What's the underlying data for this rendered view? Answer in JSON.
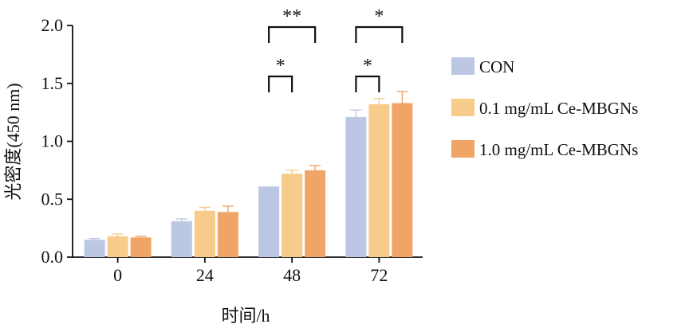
{
  "chart_data": {
    "type": "bar",
    "categories": [
      "0",
      "24",
      "48",
      "72"
    ],
    "xlabel": "时间/h",
    "ylabel": "光密度(450 nm)",
    "ylim": [
      0,
      2.0
    ],
    "yticks": [
      "0.0",
      "0.5",
      "1.0",
      "1.5",
      "2.0"
    ],
    "series": [
      {
        "name": "CON",
        "color": "#BCC8E3",
        "values": [
          0.15,
          0.31,
          0.61,
          1.21
        ],
        "errors": [
          0.01,
          0.02,
          0.0,
          0.06
        ]
      },
      {
        "name": "0.1 mg/mL Ce-MBGNs",
        "color": "#F7CC8A",
        "values": [
          0.18,
          0.4,
          0.72,
          1.32
        ],
        "errors": [
          0.02,
          0.03,
          0.03,
          0.05
        ]
      },
      {
        "name": "1.0 mg/mL Ce-MBGNs",
        "color": "#F0A466",
        "values": [
          0.17,
          0.39,
          0.75,
          1.33
        ],
        "errors": [
          0.01,
          0.05,
          0.04,
          0.1
        ]
      }
    ],
    "significance": [
      {
        "category": 2,
        "from": 0,
        "to": 1,
        "label": "*",
        "level": 1
      },
      {
        "category": 2,
        "from": 0,
        "to": 2,
        "label": "**",
        "level": 2
      },
      {
        "category": 3,
        "from": 0,
        "to": 1,
        "label": "*",
        "level": 1
      },
      {
        "category": 3,
        "from": 0,
        "to": 2,
        "label": "*",
        "level": 2
      }
    ]
  }
}
